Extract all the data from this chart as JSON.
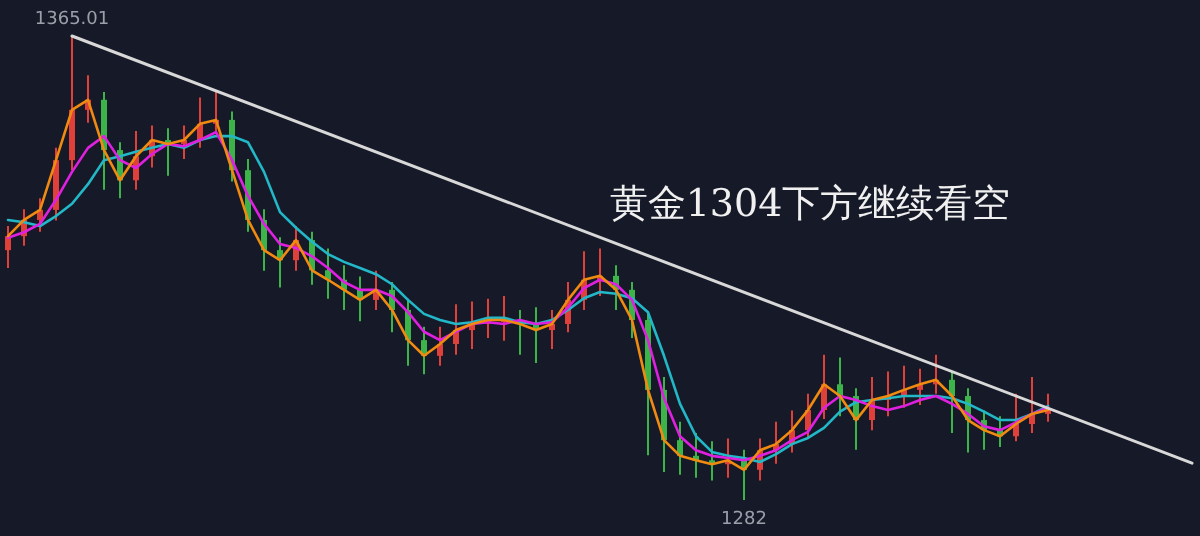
{
  "chart_data": {
    "type": "candlestick",
    "title": "黄金1304下方继续看空",
    "categories": [
      null,
      null,
      null,
      null,
      null,
      null,
      null,
      null,
      null,
      null,
      null,
      null,
      null,
      null,
      null,
      null,
      null,
      null,
      null,
      null,
      null,
      null,
      null,
      null,
      null,
      null,
      null,
      null,
      null,
      null,
      null,
      null,
      null,
      null,
      null,
      null,
      null,
      null,
      null,
      null,
      null,
      null,
      null,
      null,
      null,
      null,
      null,
      null,
      null,
      null,
      null,
      null,
      null,
      null,
      null,
      null,
      null,
      null,
      null,
      null,
      null,
      null,
      null,
      null,
      null,
      null,
      null,
      null,
      null,
      null,
      null,
      null,
      null,
      null,
      null
    ],
    "ohlc": [
      [
        1326.7,
        1331.0,
        1323.5,
        1329.2
      ],
      [
        1329.2,
        1334.0,
        1327.5,
        1332.1
      ],
      [
        1332.1,
        1336.0,
        1330.0,
        1333.9
      ],
      [
        1333.9,
        1345.0,
        1332.0,
        1342.8
      ],
      [
        1342.8,
        1365.01,
        1341.0,
        1351.8
      ],
      [
        1351.8,
        1358.0,
        1349.5,
        1353.6
      ],
      [
        1353.6,
        1355.0,
        1337.5,
        1344.6
      ],
      [
        1344.6,
        1346.0,
        1336.0,
        1339.2
      ],
      [
        1339.2,
        1348.0,
        1337.5,
        1343.5
      ],
      [
        1343.5,
        1349.0,
        1341.5,
        1346.4
      ],
      [
        1346.4,
        1348.5,
        1340.0,
        1345.7
      ],
      [
        1345.7,
        1349.0,
        1343.0,
        1346.4
      ],
      [
        1346.4,
        1354.0,
        1345.0,
        1349.3
      ],
      [
        1349.3,
        1355.0,
        1347.5,
        1350.0
      ],
      [
        1350.0,
        1351.5,
        1339.0,
        1341.0
      ],
      [
        1341.0,
        1343.0,
        1330.0,
        1332.1
      ],
      [
        1332.1,
        1334.0,
        1323.0,
        1326.7
      ],
      [
        1326.7,
        1329.0,
        1320.0,
        1324.9
      ],
      [
        1324.9,
        1331.0,
        1323.0,
        1328.5
      ],
      [
        1328.5,
        1330.0,
        1320.5,
        1323.1
      ],
      [
        1323.1,
        1327.0,
        1318.0,
        1321.4
      ],
      [
        1321.4,
        1324.0,
        1316.0,
        1319.6
      ],
      [
        1319.6,
        1322.0,
        1314.0,
        1317.8
      ],
      [
        1317.8,
        1323.0,
        1316.0,
        1319.6
      ],
      [
        1319.6,
        1321.0,
        1312.0,
        1316.0
      ],
      [
        1316.0,
        1318.0,
        1306.0,
        1310.6
      ],
      [
        1310.6,
        1313.0,
        1304.5,
        1307.8
      ],
      [
        1307.8,
        1313.0,
        1306.0,
        1309.9
      ],
      [
        1309.9,
        1317.0,
        1308.0,
        1312.4
      ],
      [
        1312.4,
        1317.5,
        1309.0,
        1313.5
      ],
      [
        1313.5,
        1318.0,
        1311.0,
        1314.2
      ],
      [
        1314.2,
        1318.5,
        1310.5,
        1314.2
      ],
      [
        1314.2,
        1316.0,
        1308.0,
        1313.5
      ],
      [
        1313.5,
        1316.5,
        1306.5,
        1312.4
      ],
      [
        1312.4,
        1316.0,
        1309.0,
        1313.5
      ],
      [
        1313.5,
        1321.0,
        1312.0,
        1317.8
      ],
      [
        1317.8,
        1326.5,
        1316.0,
        1321.4
      ],
      [
        1321.4,
        1327.0,
        1318.5,
        1322.1
      ],
      [
        1322.1,
        1324.0,
        1316.0,
        1319.6
      ],
      [
        1319.6,
        1321.0,
        1311.0,
        1314.2
      ],
      [
        1314.2,
        1315.5,
        1290.0,
        1301.7
      ],
      [
        1301.7,
        1304.0,
        1287.0,
        1292.7
      ],
      [
        1292.7,
        1296.0,
        1286.5,
        1289.9
      ],
      [
        1289.9,
        1294.0,
        1286.0,
        1289.1
      ],
      [
        1289.1,
        1292.5,
        1285.5,
        1288.4
      ],
      [
        1288.4,
        1293.0,
        1286.0,
        1289.1
      ],
      [
        1289.1,
        1291.0,
        1282.0,
        1287.4
      ],
      [
        1287.4,
        1293.0,
        1285.5,
        1290.9
      ],
      [
        1290.9,
        1296.0,
        1288.5,
        1292.0
      ],
      [
        1292.0,
        1298.0,
        1290.5,
        1294.5
      ],
      [
        1294.5,
        1301.0,
        1293.0,
        1298.1
      ],
      [
        1298.1,
        1308.0,
        1296.5,
        1302.7
      ],
      [
        1302.7,
        1307.5,
        1297.0,
        1300.6
      ],
      [
        1300.6,
        1302.0,
        1291.0,
        1296.3
      ],
      [
        1296.3,
        1304.0,
        1294.5,
        1299.9
      ],
      [
        1299.9,
        1305.0,
        1297.0,
        1300.6
      ],
      [
        1300.6,
        1306.0,
        1298.5,
        1301.7
      ],
      [
        1301.7,
        1305.5,
        1299.0,
        1302.7
      ],
      [
        1302.7,
        1308.0,
        1301.0,
        1303.5
      ],
      [
        1303.5,
        1305.0,
        1294.0,
        1300.6
      ],
      [
        1300.6,
        1302.0,
        1290.5,
        1296.3
      ],
      [
        1296.3,
        1298.0,
        1291.0,
        1294.5
      ],
      [
        1294.5,
        1297.0,
        1291.5,
        1293.4
      ],
      [
        1293.4,
        1301.0,
        1292.5,
        1295.6
      ],
      [
        1295.6,
        1304.0,
        1294.0,
        1297.4
      ],
      [
        1297.4,
        1301.0,
        1296.0,
        1298.1
      ],
      null,
      null,
      null,
      null,
      null,
      null,
      null,
      null,
      null
    ],
    "series": [
      {
        "type": "line",
        "color": "#22b8c8",
        "values": [
          1332.1,
          1331.7,
          1331.0,
          1332.8,
          1335.0,
          1338.5,
          1342.8,
          1343.5,
          1344.3,
          1345.0,
          1345.7,
          1345.0,
          1346.4,
          1347.1,
          1347.1,
          1346.0,
          1340.7,
          1333.5,
          1330.7,
          1328.2,
          1326.0,
          1324.6,
          1323.5,
          1322.4,
          1320.6,
          1317.8,
          1315.3,
          1314.2,
          1313.5,
          1313.8,
          1314.6,
          1314.6,
          1313.8,
          1313.5,
          1314.2,
          1316.0,
          1318.1,
          1319.2,
          1318.9,
          1318.1,
          1315.6,
          1307.8,
          1299.2,
          1293.4,
          1290.6,
          1289.9,
          1289.5,
          1288.8,
          1290.2,
          1292.0,
          1293.1,
          1294.9,
          1297.8,
          1299.5,
          1299.9,
          1300.2,
          1300.6,
          1300.6,
          1300.6,
          1300.2,
          1299.2,
          1297.8,
          1296.3,
          1296.3,
          1297.4,
          1298.8,
          null,
          null,
          null,
          null,
          null,
          null,
          null,
          null,
          null
        ]
      },
      {
        "type": "line",
        "color": "#e020e0",
        "values": [
          1328.9,
          1329.9,
          1331.4,
          1335.7,
          1340.7,
          1345.0,
          1347.1,
          1342.8,
          1341.4,
          1343.9,
          1345.7,
          1345.3,
          1346.4,
          1347.8,
          1342.8,
          1336.4,
          1331.4,
          1327.8,
          1327.1,
          1325.6,
          1323.5,
          1321.0,
          1319.6,
          1319.6,
          1318.5,
          1315.6,
          1312.1,
          1310.6,
          1312.1,
          1313.5,
          1313.8,
          1313.5,
          1314.2,
          1313.5,
          1313.8,
          1316.4,
          1319.9,
          1321.4,
          1320.6,
          1317.8,
          1310.6,
          1300.2,
          1293.4,
          1290.9,
          1289.9,
          1289.5,
          1289.1,
          1289.9,
          1290.9,
          1292.7,
          1294.2,
          1298.5,
          1300.6,
          1299.9,
          1298.8,
          1298.1,
          1298.8,
          1299.9,
          1300.6,
          1299.2,
          1297.4,
          1295.2,
          1294.5,
          1295.9,
          1297.4,
          1298.5,
          null,
          null,
          null,
          null,
          null,
          null,
          null,
          null,
          null
        ]
      },
      {
        "type": "line",
        "color": "#f08a10",
        "values": [
          1329.2,
          1332.1,
          1333.9,
          1342.8,
          1351.8,
          1353.6,
          1344.6,
          1339.2,
          1343.5,
          1346.4,
          1345.7,
          1346.4,
          1349.3,
          1350.0,
          1341.0,
          1332.1,
          1326.7,
          1324.9,
          1328.5,
          1323.1,
          1321.4,
          1319.6,
          1317.8,
          1319.6,
          1316.0,
          1310.6,
          1307.8,
          1309.9,
          1312.4,
          1313.5,
          1314.2,
          1314.2,
          1313.5,
          1312.4,
          1313.5,
          1317.8,
          1321.4,
          1322.1,
          1319.6,
          1314.2,
          1301.7,
          1292.7,
          1289.9,
          1289.1,
          1288.4,
          1289.1,
          1287.4,
          1290.9,
          1292.0,
          1294.5,
          1298.1,
          1302.7,
          1300.6,
          1296.3,
          1299.9,
          1300.6,
          1301.7,
          1302.7,
          1303.5,
          1300.6,
          1296.3,
          1294.5,
          1293.4,
          1295.6,
          1297.4,
          1298.1,
          null,
          null,
          null,
          null,
          null,
          null,
          null,
          null,
          null
        ]
      },
      {
        "type": "line",
        "color": "#d8d8d8",
        "values": [
          null,
          null,
          null,
          null,
          1365.01,
          null,
          null,
          null,
          null,
          null,
          null,
          null,
          null,
          null,
          null,
          null,
          null,
          null,
          null,
          null,
          null,
          null,
          null,
          null,
          null,
          null,
          null,
          null,
          null,
          null,
          null,
          null,
          null,
          null,
          null,
          null,
          null,
          null,
          null,
          null,
          null,
          null,
          null,
          null,
          null,
          null,
          null,
          null,
          null,
          null,
          null,
          null,
          null,
          null,
          null,
          null,
          null,
          null,
          null,
          null,
          null,
          null,
          null,
          null,
          null,
          null,
          null,
          null,
          null,
          null,
          null,
          null,
          null,
          null,
          1288.6
        ]
      }
    ],
    "annotations": [
      {
        "text": "1365.01",
        "y": 1365.01
      },
      {
        "text": "1282",
        "y": 1282
      }
    ]
  }
}
